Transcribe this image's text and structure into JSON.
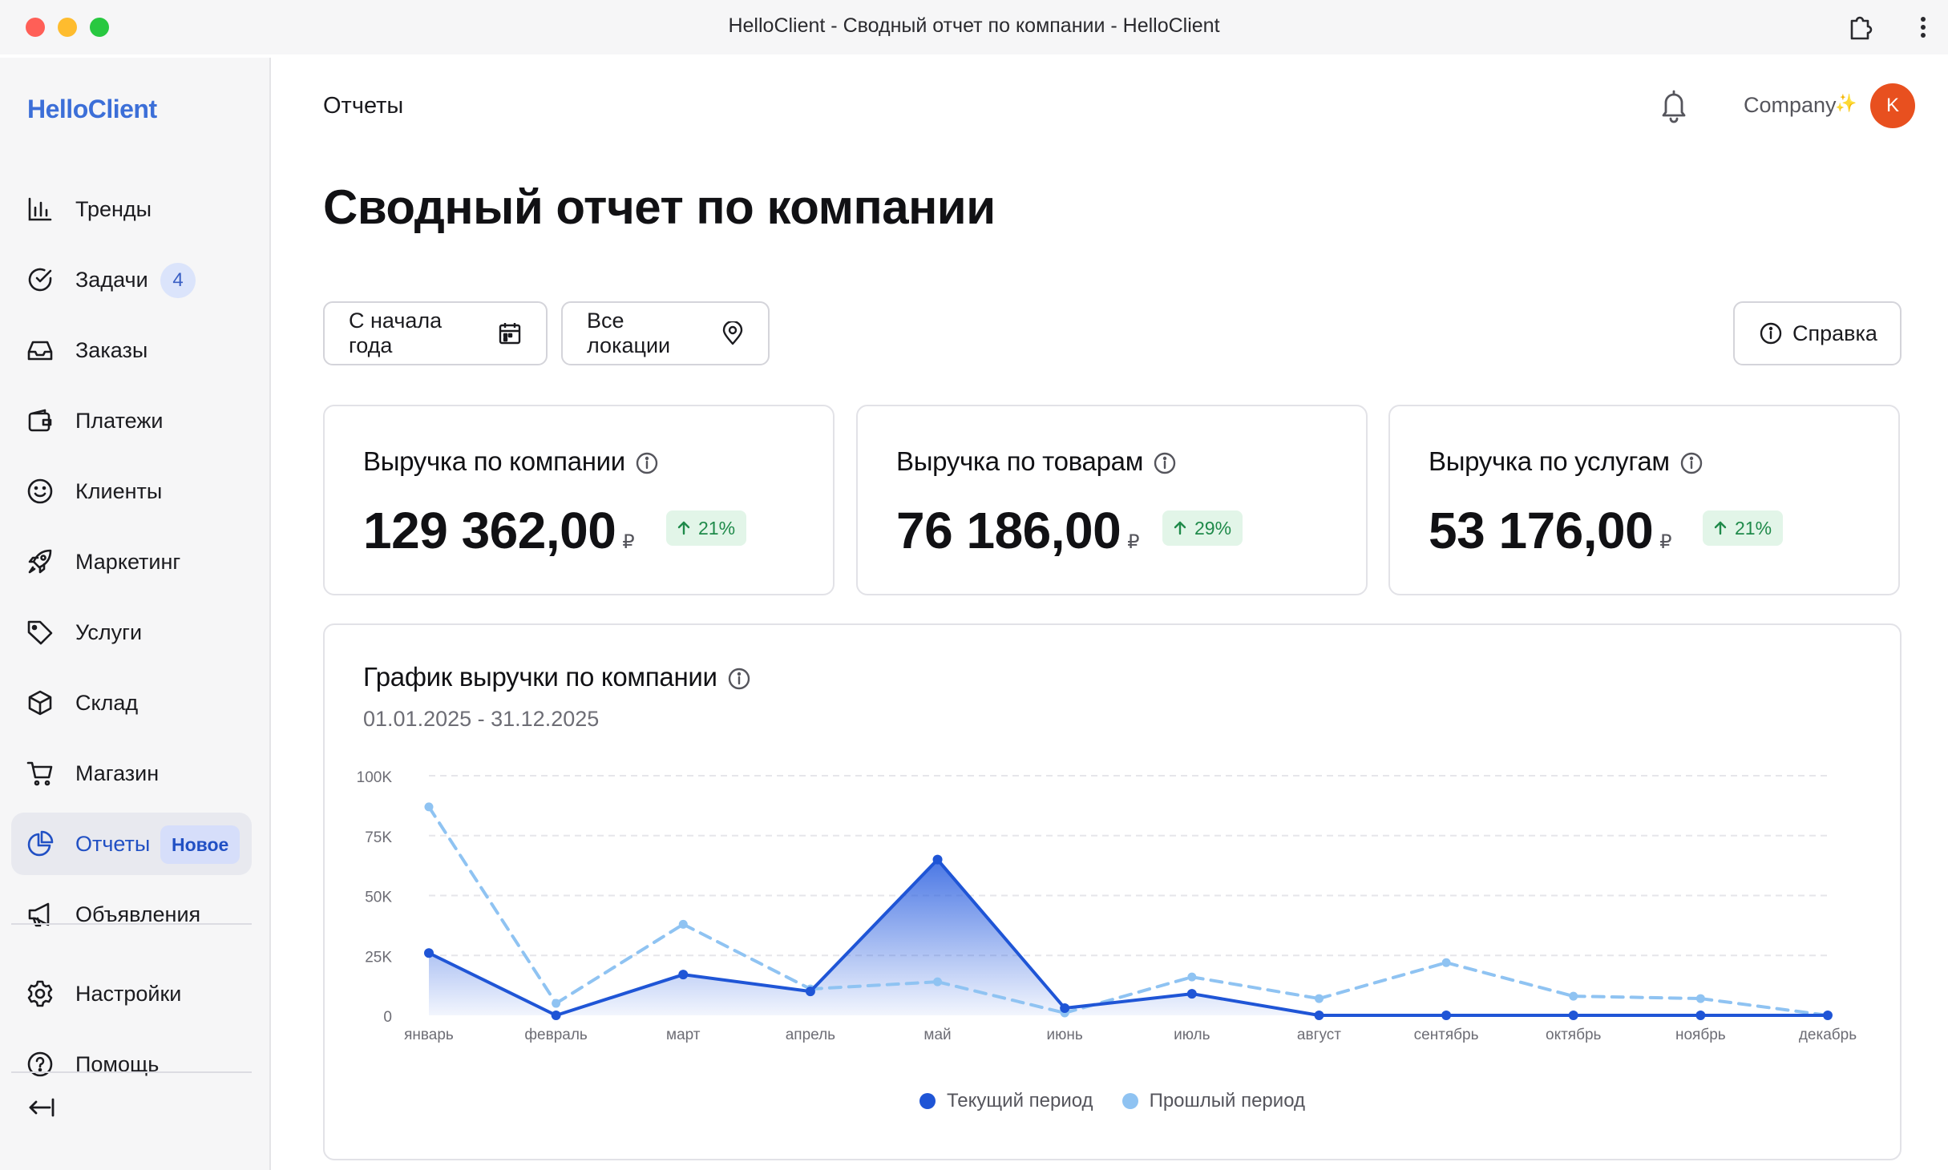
{
  "window": {
    "title": "HelloClient - Сводный отчет по компании - HelloClient"
  },
  "sidebar": {
    "logo": "HelloClient",
    "items": [
      {
        "label": "Тренды",
        "icon": "bar-chart-icon"
      },
      {
        "label": "Задачи",
        "icon": "check-circle-icon",
        "badge": "4"
      },
      {
        "label": "Заказы",
        "icon": "inbox-icon"
      },
      {
        "label": "Платежи",
        "icon": "wallet-icon"
      },
      {
        "label": "Клиенты",
        "icon": "smile-icon"
      },
      {
        "label": "Маркетинг",
        "icon": "rocket-icon"
      },
      {
        "label": "Услуги",
        "icon": "tag-icon"
      },
      {
        "label": "Склад",
        "icon": "box-icon"
      },
      {
        "label": "Магазин",
        "icon": "cart-icon"
      },
      {
        "label": "Отчеты",
        "icon": "pie-chart-icon",
        "tag": "Новое",
        "active": true
      },
      {
        "label": "Объявления",
        "icon": "megaphone-icon"
      }
    ],
    "bottom_items": [
      {
        "label": "Настройки",
        "icon": "gear-icon"
      },
      {
        "label": "Помощь",
        "icon": "help-circle-icon"
      }
    ]
  },
  "header": {
    "breadcrumb": "Отчеты",
    "company": "Company",
    "company_decoration": "✨",
    "avatar_initial": "K"
  },
  "page": {
    "title": "Сводный отчет по компании"
  },
  "filters": {
    "period": "С начала года",
    "location": "Все локации",
    "help": "Справка"
  },
  "cards": [
    {
      "title": "Выручка по компании",
      "value": "129 362,00",
      "currency": "₽",
      "delta": "21%"
    },
    {
      "title": "Выручка по товарам",
      "value": "76 186,00",
      "currency": "₽",
      "delta": "29%"
    },
    {
      "title": "Выручка по услугам",
      "value": "53 176,00",
      "currency": "₽",
      "delta": "21%"
    }
  ],
  "chart": {
    "title": "График выручки по компании",
    "subtitle": "01.01.2025 - 31.12.2025"
  },
  "colors": {
    "accent": "#2150c4",
    "current_series": "#1f55d6",
    "previous_series": "#8fc3f2",
    "delta_green": "#1f8a4a",
    "avatar": "#e8501f"
  },
  "chart_data": {
    "type": "line",
    "categories": [
      "январь",
      "февраль",
      "март",
      "апрель",
      "май",
      "июнь",
      "июль",
      "август",
      "сентябрь",
      "октябрь",
      "ноябрь",
      "декабрь"
    ],
    "series": [
      {
        "name": "Текущий период",
        "values": [
          26000,
          0,
          17000,
          10000,
          65000,
          3000,
          9000,
          0,
          0,
          0,
          0,
          0
        ]
      },
      {
        "name": "Прошлый период",
        "values": [
          87000,
          5000,
          38000,
          11000,
          14000,
          1000,
          16000,
          7000,
          22000,
          8000,
          7000,
          0
        ]
      }
    ],
    "yticks": [
      "0",
      "25K",
      "50K",
      "75K",
      "100K"
    ],
    "ylim": [
      0,
      100000
    ],
    "grid": true,
    "legend": "bottom"
  }
}
